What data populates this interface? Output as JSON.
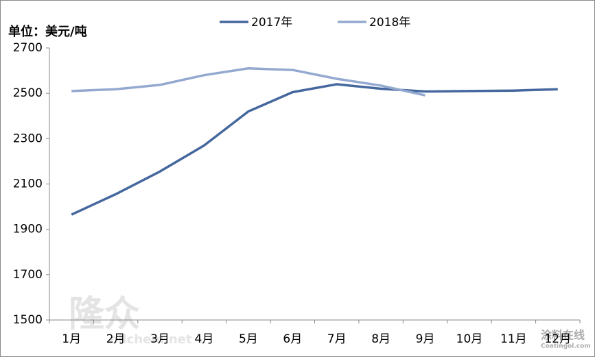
{
  "chart_data": {
    "type": "line",
    "title": "单位：美元/吨",
    "categories": [
      "1月",
      "2月",
      "3月",
      "4月",
      "5月",
      "6月",
      "7月",
      "8月",
      "9月",
      "10月",
      "11月",
      "12月"
    ],
    "series": [
      {
        "name": "2017年",
        "color": "#44679e",
        "values": [
          1965,
          2055,
          2155,
          2270,
          2420,
          2505,
          2540,
          2520,
          2508,
          2510,
          2512,
          2518
        ]
      },
      {
        "name": "2018年",
        "color": "#93a9cf",
        "values": [
          2510,
          2518,
          2537,
          2580,
          2610,
          2603,
          2564,
          2534,
          2491,
          null,
          null,
          null
        ]
      }
    ],
    "ylim": [
      1500,
      2700
    ],
    "yticks": [
      1500,
      1700,
      1900,
      2100,
      2300,
      2500,
      2700
    ],
    "grid": false,
    "legend": "top",
    "watermarks": [
      "隆众",
      "oilchem.net",
      "涂料在线",
      "Coatingol.com"
    ]
  }
}
